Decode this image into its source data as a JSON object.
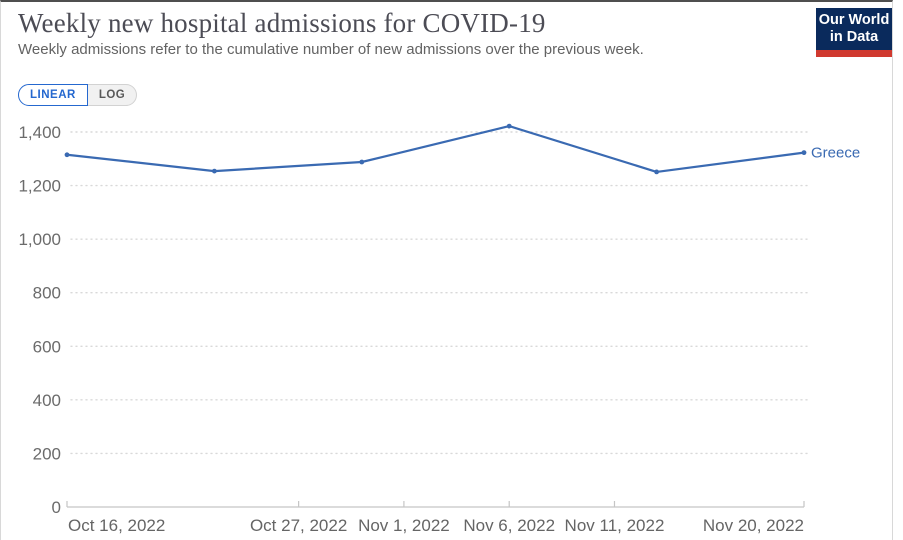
{
  "header": {
    "title": "Weekly new hospital admissions for COVID-19",
    "subtitle": "Weekly admissions refer to the cumulative number of new admissions over the previous week.",
    "logo": {
      "line1": "Our World",
      "line2": "in Data",
      "bg_color": "#0a2a5c",
      "bar_color": "#d0392f"
    }
  },
  "toggle": {
    "linear_label": "LINEAR",
    "log_label": "LOG",
    "active": "LINEAR",
    "active_color": "#2568cf",
    "inactive_color": "#595959"
  },
  "chart_data": {
    "type": "line",
    "title": "Weekly new hospital admissions for COVID-19",
    "xlabel": "",
    "ylabel": "",
    "x_range": [
      "Oct 16, 2022",
      "Nov 20, 2022"
    ],
    "x_range_days": 35,
    "grid": "horizontal-dotted",
    "legend_position": "end-of-line",
    "ylim": [
      0,
      1400
    ],
    "y_ticks": [
      0,
      200,
      400,
      600,
      800,
      1000,
      1200,
      1400
    ],
    "y_tick_labels": [
      "0",
      "200",
      "400",
      "600",
      "800",
      "1,000",
      "1,200",
      "1,400"
    ],
    "x_ticks": [
      {
        "day": 0,
        "label": "Oct 16, 2022",
        "anchor": "start"
      },
      {
        "day": 11,
        "label": "Oct 27, 2022",
        "anchor": "middle"
      },
      {
        "day": 16,
        "label": "Nov 1, 2022",
        "anchor": "middle"
      },
      {
        "day": 21,
        "label": "Nov 6, 2022",
        "anchor": "middle"
      },
      {
        "day": 26,
        "label": "Nov 11, 2022",
        "anchor": "middle"
      },
      {
        "day": 35,
        "label": "Nov 20, 2022",
        "anchor": "end"
      }
    ],
    "series": [
      {
        "name": "Greece",
        "color": "#3a6ab2",
        "points": [
          {
            "date": "Oct 16, 2022",
            "day": 0,
            "value": 1315
          },
          {
            "date": "Oct 23, 2022",
            "day": 7,
            "value": 1254
          },
          {
            "date": "Oct 30, 2022",
            "day": 14,
            "value": 1288
          },
          {
            "date": "Nov 6, 2022",
            "day": 21,
            "value": 1422
          },
          {
            "date": "Nov 13, 2022",
            "day": 28,
            "value": 1251
          },
          {
            "date": "Nov 20, 2022",
            "day": 35,
            "value": 1323
          }
        ]
      }
    ]
  }
}
